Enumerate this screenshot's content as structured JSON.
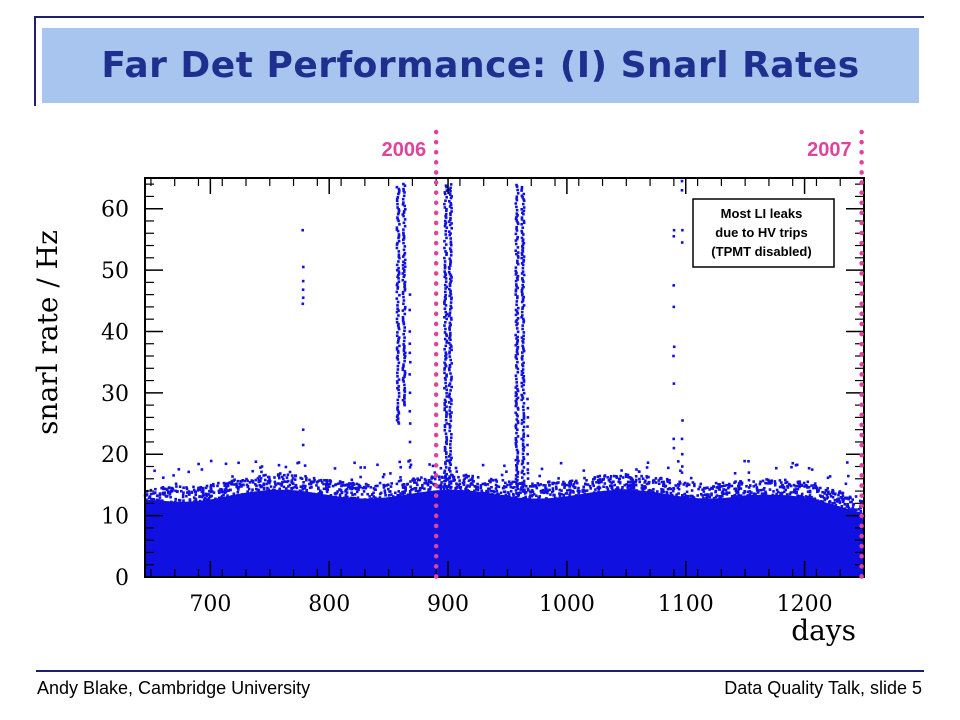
{
  "slide": {
    "title": "Far Det Performance: (I) Snarl Rates",
    "footer_left": "Andy Blake, Cambridge University",
    "footer_right": "Data Quality Talk, slide 5"
  },
  "chart_data": {
    "type": "scatter",
    "title": "",
    "xlabel": "days",
    "ylabel": "snarl rate / Hz",
    "xlim": [
      645,
      1250
    ],
    "ylim": [
      0,
      65
    ],
    "xticks": [
      700,
      800,
      900,
      1000,
      1100,
      1200
    ],
    "yticks": [
      0,
      10,
      20,
      30,
      40,
      50,
      60
    ],
    "grid": false,
    "marker_color": "#1010e0",
    "year_marker_color": "#e0449a",
    "baseline": {
      "x_range": [
        645,
        1250
      ],
      "typical_max": 15,
      "peak_outliers_max": 19
    },
    "spikes": [
      {
        "x": 778,
        "y": [
          56.5,
          50.5,
          48.2,
          46.8,
          45.5,
          44.5,
          24.0,
          21.5
        ]
      },
      {
        "x": 858,
        "y_range": [
          25,
          64
        ]
      },
      {
        "x": 863,
        "y_range": [
          28,
          64
        ]
      },
      {
        "x": 868,
        "y": [
          46.0,
          43.5,
          40.0,
          38.0,
          36.5,
          35.0,
          33.0,
          30.0,
          27.0,
          25.0,
          22.0,
          19.0
        ]
      },
      {
        "x": 898,
        "y_range": [
          14,
          64
        ]
      },
      {
        "x": 902,
        "y_range": [
          15,
          64
        ]
      },
      {
        "x": 958,
        "y_range": [
          13,
          64
        ]
      },
      {
        "x": 963,
        "y_range": [
          14,
          64
        ]
      },
      {
        "x": 967,
        "y": [
          29.0,
          27.5,
          26.0,
          24.5,
          23.0,
          21.5,
          20.0,
          18.5,
          17.5
        ]
      },
      {
        "x": 1090,
        "y": [
          56.5,
          55.5,
          47.5,
          44.0,
          37.5,
          36.0,
          31.5,
          22.5,
          21.0
        ]
      },
      {
        "x": 1097,
        "y": [
          64.5,
          63.0,
          56.5,
          54.5,
          25.5,
          22.5,
          20.0,
          18.0,
          17.0
        ]
      }
    ],
    "year_markers": [
      {
        "label": "2006",
        "x": 890
      },
      {
        "label": "2007",
        "x": 1248
      }
    ],
    "annotation": {
      "lines": [
        "Most LI leaks",
        "due to HV trips",
        "(TPMT disabled)"
      ]
    }
  }
}
